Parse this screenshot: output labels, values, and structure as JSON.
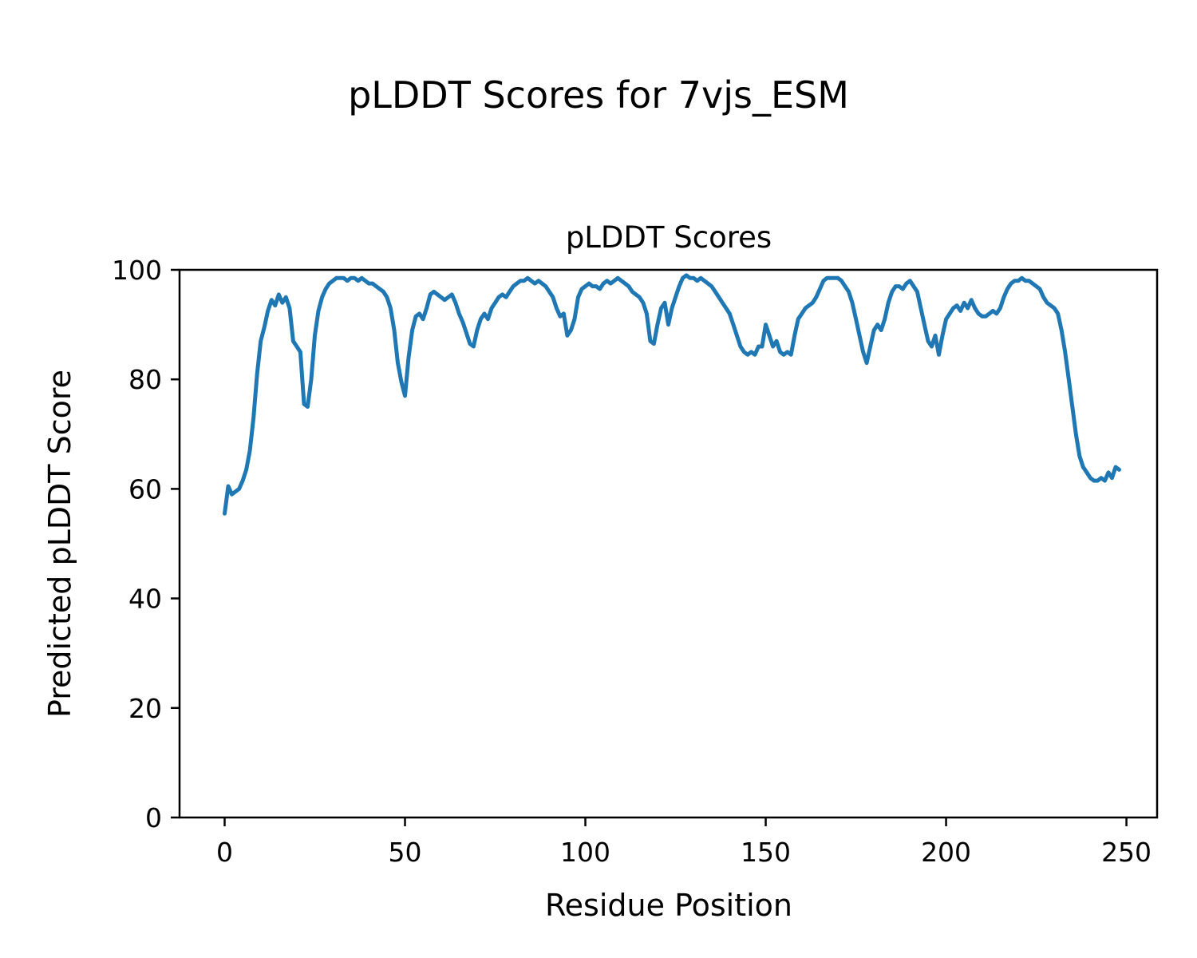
{
  "figure": {
    "suptitle": "pLDDT Scores for 7vjs_ESM"
  },
  "chart_data": {
    "type": "line",
    "title": "pLDDT Scores",
    "xlabel": "Residue Position",
    "ylabel": "Predicted pLDDT Score",
    "xlim": [
      -12.5,
      258.5
    ],
    "ylim": [
      0,
      100
    ],
    "xticks": [
      0,
      50,
      100,
      150,
      200,
      250
    ],
    "yticks": [
      0,
      20,
      40,
      60,
      80,
      100
    ],
    "grid": false,
    "legend": false,
    "line_color": "#1f77b4",
    "line_width": 5,
    "series_name": "pLDDT per residue",
    "x_start": 0,
    "x_step": 1,
    "values": [
      55.5,
      60.5,
      59.0,
      59.5,
      60.0,
      61.5,
      63.5,
      67.0,
      73.0,
      81.0,
      87.0,
      89.5,
      92.5,
      94.5,
      93.5,
      95.5,
      94.0,
      95.0,
      93.0,
      87.0,
      86.0,
      85.0,
      75.5,
      75.0,
      80.0,
      88.0,
      92.5,
      95.0,
      96.5,
      97.5,
      98.0,
      98.5,
      98.5,
      98.5,
      98.0,
      98.5,
      98.5,
      98.0,
      98.5,
      98.0,
      97.5,
      97.5,
      97.0,
      96.5,
      96.0,
      95.0,
      93.0,
      89.0,
      83.0,
      79.5,
      77.0,
      84.0,
      89.0,
      91.5,
      92.0,
      91.0,
      93.0,
      95.5,
      96.0,
      95.5,
      95.0,
      94.5,
      95.0,
      95.5,
      94.0,
      92.0,
      90.5,
      88.5,
      86.5,
      86.0,
      89.0,
      91.0,
      92.0,
      91.0,
      93.0,
      94.0,
      95.0,
      95.5,
      95.0,
      96.0,
      97.0,
      97.5,
      98.0,
      98.0,
      98.5,
      98.0,
      97.5,
      98.0,
      97.5,
      97.0,
      96.0,
      95.0,
      93.0,
      91.5,
      92.0,
      88.0,
      89.0,
      91.0,
      95.0,
      96.5,
      97.0,
      97.5,
      97.0,
      97.0,
      96.5,
      97.5,
      98.0,
      97.5,
      98.0,
      98.5,
      98.0,
      97.5,
      97.0,
      96.0,
      95.5,
      95.0,
      94.0,
      92.0,
      87.0,
      86.5,
      90.0,
      93.0,
      94.0,
      90.0,
      93.0,
      95.0,
      97.0,
      98.5,
      99.0,
      98.5,
      98.5,
      98.0,
      98.5,
      98.0,
      97.5,
      97.0,
      96.0,
      95.0,
      94.0,
      93.0,
      92.0,
      90.0,
      88.0,
      86.0,
      85.0,
      84.5,
      85.0,
      84.5,
      86.0,
      86.0,
      90.0,
      88.0,
      86.0,
      87.0,
      85.0,
      84.5,
      85.0,
      84.5,
      88.0,
      91.0,
      92.0,
      93.0,
      93.5,
      94.0,
      95.0,
      96.5,
      98.0,
      98.5,
      98.5,
      98.5,
      98.5,
      98.0,
      97.0,
      96.0,
      94.0,
      91.0,
      88.0,
      85.0,
      83.0,
      86.0,
      89.0,
      90.0,
      89.0,
      91.0,
      94.0,
      96.0,
      97.0,
      97.0,
      96.5,
      97.5,
      98.0,
      97.0,
      96.0,
      93.0,
      90.0,
      87.0,
      86.0,
      88.0,
      84.5,
      88.0,
      91.0,
      92.0,
      93.0,
      93.5,
      92.5,
      94.0,
      93.0,
      94.5,
      93.0,
      92.0,
      91.5,
      91.5,
      92.0,
      92.5,
      92.0,
      93.0,
      95.0,
      96.5,
      97.5,
      98.0,
      98.0,
      98.5,
      98.0,
      98.0,
      97.5,
      97.0,
      96.5,
      95.0,
      94.0,
      93.5,
      93.0,
      92.0,
      89.0,
      85.0,
      80.0,
      75.0,
      70.0,
      66.0,
      64.0,
      63.0,
      62.0,
      61.5,
      61.5,
      62.0,
      61.5,
      63.0,
      62.0,
      64.0,
      63.5
    ]
  }
}
